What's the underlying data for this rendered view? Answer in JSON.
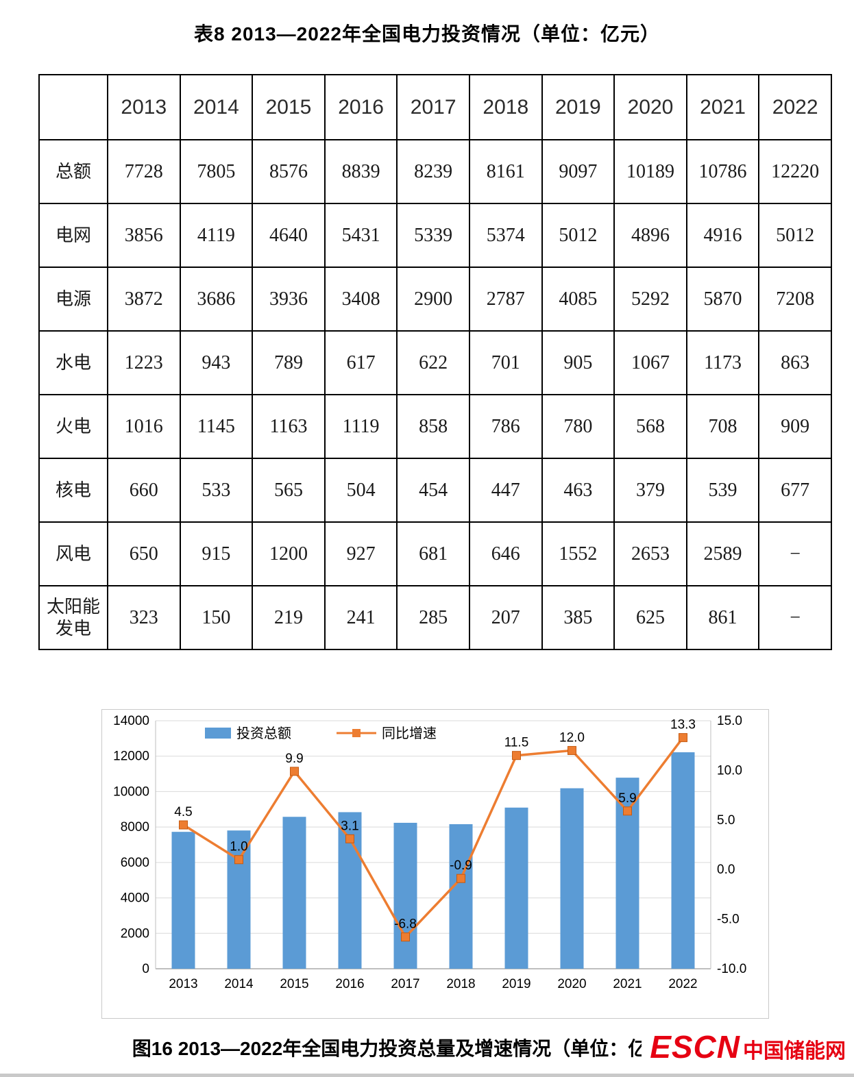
{
  "page": {
    "table_title": "表8  2013—2022年全国电力投资情况（单位：亿元）",
    "figure_caption": "图16  2013—2022年全国电力投资总量及增速情况（单位：亿元、%）"
  },
  "logo": {
    "abbr": "ESCN",
    "name": "中国储能网",
    "color": "#e60012"
  },
  "table": {
    "col_headers": [
      "",
      "2013",
      "2014",
      "2015",
      "2016",
      "2017",
      "2018",
      "2019",
      "2020",
      "2021",
      "2022"
    ],
    "rows": [
      {
        "label": "总额",
        "values": [
          "7728",
          "7805",
          "8576",
          "8839",
          "8239",
          "8161",
          "9097",
          "10189",
          "10786",
          "12220"
        ]
      },
      {
        "label": "电网",
        "values": [
          "3856",
          "4119",
          "4640",
          "5431",
          "5339",
          "5374",
          "5012",
          "4896",
          "4916",
          "5012"
        ]
      },
      {
        "label": "电源",
        "values": [
          "3872",
          "3686",
          "3936",
          "3408",
          "2900",
          "2787",
          "4085",
          "5292",
          "5870",
          "7208"
        ]
      },
      {
        "label": "水电",
        "values": [
          "1223",
          "943",
          "789",
          "617",
          "622",
          "701",
          "905",
          "1067",
          "1173",
          "863"
        ]
      },
      {
        "label": "火电",
        "values": [
          "1016",
          "1145",
          "1163",
          "1119",
          "858",
          "786",
          "780",
          "568",
          "708",
          "909"
        ]
      },
      {
        "label": "核电",
        "values": [
          "660",
          "533",
          "565",
          "504",
          "454",
          "447",
          "463",
          "379",
          "539",
          "677"
        ]
      },
      {
        "label": "风电",
        "values": [
          "650",
          "915",
          "1200",
          "927",
          "681",
          "646",
          "1552",
          "2653",
          "2589",
          "−"
        ]
      },
      {
        "label": "太阳能发电",
        "values": [
          "323",
          "150",
          "219",
          "241",
          "285",
          "207",
          "385",
          "625",
          "861",
          "−"
        ]
      }
    ]
  },
  "chart_data": {
    "type": "bar",
    "subtype": "bar-line-combo",
    "title": "图16  2013—2022年全国电力投资总量及增速情况（单位：亿元、%）",
    "categories": [
      "2013",
      "2014",
      "2015",
      "2016",
      "2017",
      "2018",
      "2019",
      "2020",
      "2021",
      "2022"
    ],
    "series": [
      {
        "name": "投资总额",
        "chart": "bar",
        "axis": "left",
        "color": "#5b9bd5",
        "values": [
          7728,
          7805,
          8576,
          8839,
          8239,
          8161,
          9097,
          10189,
          10786,
          12220
        ]
      },
      {
        "name": "同比增速",
        "chart": "line",
        "axis": "right",
        "color": "#ed7d31",
        "marker": "square",
        "values": [
          4.5,
          1.0,
          9.9,
          3.1,
          -6.8,
          -0.9,
          11.5,
          12.0,
          5.9,
          13.3
        ]
      }
    ],
    "left_axis": {
      "min": 0,
      "max": 14000,
      "step": 2000,
      "ticks": [
        0,
        2000,
        4000,
        6000,
        8000,
        10000,
        12000,
        14000
      ]
    },
    "right_axis": {
      "min": -10,
      "max": 15,
      "step": 5,
      "ticks": [
        "-10.0",
        "-5.0",
        "0.0",
        "5.0",
        "10.0",
        "15.0"
      ]
    },
    "legend_position": "top",
    "grid": true,
    "data_labels": true
  }
}
